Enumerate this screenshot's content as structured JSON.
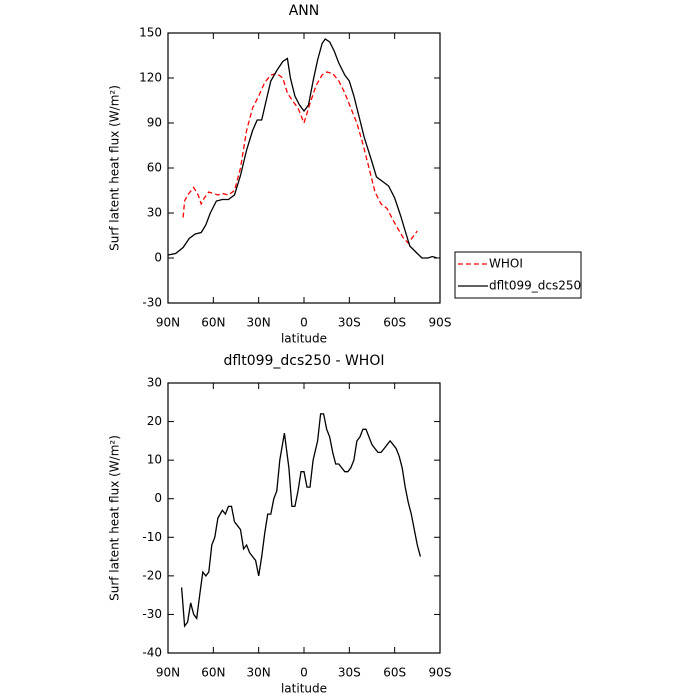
{
  "chart_data": [
    {
      "type": "line",
      "title": "ANN",
      "x_label": "latitude",
      "y_label": "Surf latent heat flux (W/m²)",
      "xlim": [
        90,
        -90
      ],
      "ylim": [
        -30,
        150
      ],
      "xticks": [
        {
          "value": 90,
          "label": "90N"
        },
        {
          "value": 60,
          "label": "60N"
        },
        {
          "value": 30,
          "label": "30N"
        },
        0,
        {
          "value": -30,
          "label": "30S"
        },
        {
          "value": -60,
          "label": "60S"
        },
        {
          "value": -90,
          "label": "90S"
        }
      ],
      "yticks": [
        -30,
        0,
        30,
        60,
        90,
        120,
        150
      ],
      "legend": "right",
      "series": [
        {
          "name": "WHOI",
          "color": "#ff0000",
          "line_style": "dashed",
          "x": [
            80,
            79,
            77,
            73,
            70,
            68,
            66,
            63,
            60,
            57,
            54,
            50,
            46,
            42,
            38,
            34,
            30,
            26,
            22,
            18,
            14,
            11,
            7,
            4,
            0,
            -4,
            -8,
            -12,
            -15,
            -19,
            -23,
            -27,
            -31,
            -35,
            -39,
            -43,
            -47,
            -51,
            -55,
            -59,
            -63,
            -66,
            -69,
            -72,
            -75
          ],
          "values": [
            27,
            38,
            42,
            47,
            42,
            36,
            40,
            44,
            43,
            42,
            43,
            42,
            45,
            60,
            85,
            100,
            108,
            117,
            122,
            123,
            120,
            110,
            104,
            100,
            90,
            103,
            115,
            122,
            124,
            123,
            118,
            110,
            100,
            90,
            76,
            60,
            44,
            36,
            33,
            25,
            18,
            13,
            10,
            14,
            18
          ]
        },
        {
          "name": "dflt099_dcs250",
          "color": "#000000",
          "line_style": "solid",
          "x": [
            90,
            85,
            80,
            76,
            72,
            68,
            65,
            62,
            58,
            54,
            50,
            46,
            42,
            38,
            34,
            31,
            28,
            25,
            22,
            18,
            14,
            11,
            9,
            6,
            3,
            0,
            -3,
            -6,
            -9,
            -12,
            -14,
            -17,
            -20,
            -23,
            -27,
            -30,
            -33,
            -37,
            -40,
            -45,
            -48,
            -52,
            -56,
            -60,
            -64,
            -67,
            -70,
            -74,
            -78,
            -82,
            -85,
            -88
          ],
          "values": [
            2,
            3,
            7,
            13,
            16,
            17,
            22,
            30,
            38,
            39,
            39,
            42,
            55,
            72,
            85,
            92,
            92,
            105,
            118,
            125,
            131,
            133,
            120,
            108,
            102,
            98,
            102,
            118,
            132,
            143,
            146,
            144,
            138,
            130,
            122,
            118,
            108,
            92,
            80,
            64,
            54,
            51,
            48,
            40,
            28,
            18,
            8,
            4,
            0,
            0,
            1,
            0
          ]
        }
      ]
    },
    {
      "type": "line",
      "title": "dflt099_dcs250 - WHOI",
      "x_label": "latitude",
      "y_label": "Surf latent heat flux (W/m²)",
      "xlim": [
        90,
        -90
      ],
      "ylim": [
        -40,
        30
      ],
      "xticks": [
        {
          "value": 90,
          "label": "90N"
        },
        {
          "value": 60,
          "label": "60N"
        },
        {
          "value": 30,
          "label": "30N"
        },
        0,
        {
          "value": -30,
          "label": "30S"
        },
        {
          "value": -60,
          "label": "60S"
        },
        {
          "value": -90,
          "label": "90S"
        }
      ],
      "yticks": [
        -40,
        -30,
        -20,
        -10,
        0,
        10,
        20,
        30
      ],
      "series": [
        {
          "color": "#000000",
          "line_style": "solid",
          "x": [
            81,
            79,
            77,
            75,
            73,
            71,
            69,
            67,
            65,
            63,
            61,
            59,
            57,
            54,
            52,
            50,
            48,
            46,
            44,
            42,
            40,
            38,
            36,
            34,
            32,
            30,
            28,
            26,
            24,
            22,
            20,
            18,
            16,
            13,
            10,
            8,
            6,
            4,
            2,
            0,
            -2,
            -4,
            -6,
            -9,
            -11,
            -13,
            -15,
            -17,
            -19,
            -21,
            -23,
            -25,
            -27,
            -29,
            -31,
            -33,
            -35,
            -37,
            -39,
            -41,
            -43,
            -45,
            -47,
            -49,
            -51,
            -53,
            -55,
            -57,
            -59,
            -61,
            -63,
            -65,
            -67,
            -69,
            -71,
            -73,
            -75,
            -77
          ],
          "values": [
            -23,
            -33,
            -32,
            -27,
            -30,
            -31,
            -25,
            -19,
            -20,
            -19,
            -12,
            -10,
            -5,
            -3,
            -4,
            -2,
            -2,
            -6,
            -7,
            -8,
            -13,
            -12,
            -14,
            -15,
            -16,
            -20,
            -15,
            -9,
            -4,
            -4,
            0,
            2,
            10,
            17,
            8,
            -2,
            -2,
            2,
            7,
            7,
            3,
            3,
            10,
            15,
            22,
            22,
            18,
            16,
            12,
            9,
            9,
            8,
            7,
            7,
            8,
            10,
            15,
            16,
            18,
            18,
            16,
            14,
            13,
            12,
            12,
            13,
            14,
            15,
            14,
            13,
            11,
            8,
            3,
            -1,
            -4,
            -8,
            -12,
            -15
          ]
        }
      ]
    }
  ]
}
